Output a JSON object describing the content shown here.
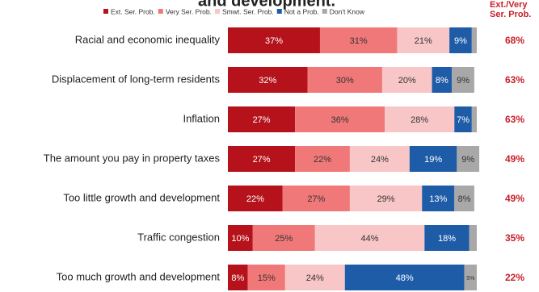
{
  "chart_data": {
    "type": "stacked_bar_horizontal",
    "title": "and development.",
    "categories": [
      "Racial and economic inequality",
      "Displacement of long-term residents",
      "Inflation",
      "The amount you pay in property taxes",
      "Too little growth and development",
      "Traffic congestion",
      "Too much growth and development"
    ],
    "series": [
      {
        "name": "Ext. Ser. Prob.",
        "color": "#b5121b",
        "values": [
          37,
          32,
          27,
          27,
          22,
          10,
          8
        ],
        "value_labels": [
          "37%",
          "32%",
          "27%",
          "27%",
          "22%",
          "10%",
          "8%"
        ]
      },
      {
        "name": "Very Ser. Prob.",
        "color": "#f07878",
        "values": [
          31,
          30,
          36,
          22,
          27,
          25,
          15
        ],
        "value_labels": [
          "31%",
          "30%",
          "36%",
          "22%",
          "27%",
          "25%",
          "15%"
        ]
      },
      {
        "name": "Smwt. Ser. Prob.",
        "color": "#f8c6c6",
        "values": [
          21,
          20,
          28,
          24,
          29,
          44,
          24
        ],
        "value_labels": [
          "21%",
          "20%",
          "28%",
          "24%",
          "29%",
          "44%",
          "24%"
        ]
      },
      {
        "name": "Not a Prob.",
        "color": "#1f5ca8",
        "values": [
          9,
          8,
          7,
          19,
          13,
          18,
          48
        ],
        "value_labels": [
          "9%",
          "8%",
          "7%",
          "19%",
          "13%",
          "18%",
          "48%"
        ]
      },
      {
        "name": "Don't Know",
        "color": "#a8a8a8",
        "values": [
          2,
          9,
          2,
          9,
          8,
          3,
          5
        ],
        "value_labels": [
          null,
          "9%",
          null,
          "9%",
          "8%",
          null,
          "5%"
        ]
      }
    ],
    "totals": {
      "name": "Ext./Very Ser. Prob.",
      "color": "#c8202a",
      "values": [
        68,
        63,
        63,
        49,
        49,
        35,
        22
      ],
      "value_labels": [
        "68%",
        "63%",
        "63%",
        "49%",
        "49%",
        "35%",
        "22%"
      ]
    },
    "xlim": [
      0,
      100
    ]
  }
}
